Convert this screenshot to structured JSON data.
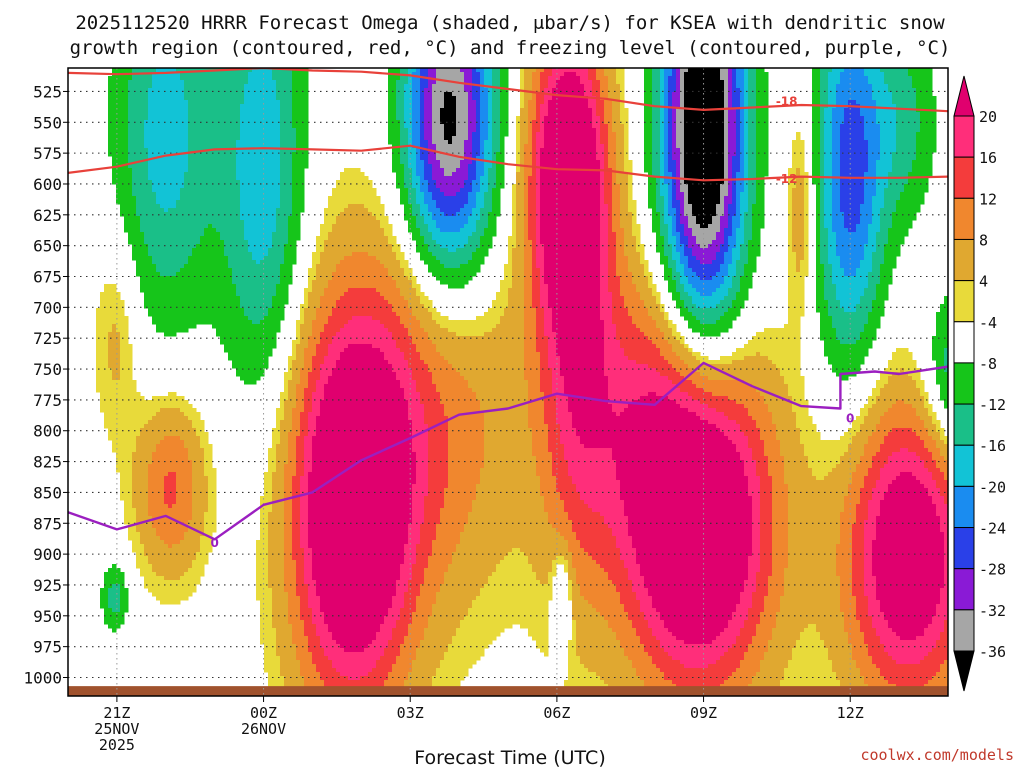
{
  "title": {
    "line1": "2025112520 HRRR Forecast Omega (shaded, μbar/s) for KSEA with dendritic snow",
    "line2": "growth region (contoured, red, °C) and freezing level (contoured, purple, °C)"
  },
  "credit": "coolwx.com/models",
  "colors": {
    "dgz": "#e8413a",
    "freezing": "#9b1fc0",
    "ground": "#a0522d",
    "grid": "#555555"
  },
  "chart_data": {
    "type": "heatmap",
    "title": "2025112520 HRRR Forecast Omega (shaded, μbar/s) for KSEA with dendritic snow growth region (contoured, red, °C) and freezing level (contoured, purple, °C)",
    "xlabel": "Forecast Time (UTC)",
    "ylabel": "",
    "x_range_hours": [
      -1,
      17
    ],
    "y_range_hpa": [
      1015,
      506
    ],
    "y_ticks": [
      525,
      550,
      575,
      600,
      625,
      650,
      675,
      700,
      725,
      750,
      775,
      800,
      825,
      850,
      875,
      900,
      925,
      950,
      975,
      1000
    ],
    "x_ticks": [
      {
        "hour": 0,
        "lines": [
          "21Z",
          "25NOV",
          "2025"
        ]
      },
      {
        "hour": 3,
        "lines": [
          "00Z",
          "26NOV"
        ]
      },
      {
        "hour": 6,
        "lines": [
          "03Z"
        ]
      },
      {
        "hour": 9,
        "lines": [
          "06Z"
        ]
      },
      {
        "hour": 12,
        "lines": [
          "09Z"
        ]
      },
      {
        "hour": 15,
        "lines": [
          "12Z"
        ]
      }
    ],
    "colorbar": {
      "labels": [
        "20",
        "16",
        "12",
        "8",
        "4",
        "-4",
        "-8",
        "-12",
        "-16",
        "-20",
        "-24",
        "-28",
        "-32",
        "-36"
      ],
      "bins": [
        {
          "range": ">20",
          "color": "#e0006e"
        },
        {
          "range": "16 to 20",
          "color": "#ff2e7a"
        },
        {
          "range": "12 to 16",
          "color": "#f43c3c"
        },
        {
          "range": "8 to 12",
          "color": "#f0872e"
        },
        {
          "range": "4 to 8",
          "color": "#e0a830"
        },
        {
          "range": "-4 to 4",
          "color": "#e8da3a"
        },
        {
          "range": "-8 to -4",
          "color": "#ffffff"
        },
        {
          "range": "-12 to -8",
          "color": "#16c51a"
        },
        {
          "range": "-16 to -12",
          "color": "#1abf88"
        },
        {
          "range": "-20 to -16",
          "color": "#12c3d6"
        },
        {
          "range": "-24 to -20",
          "color": "#1a8cf0"
        },
        {
          "range": "-28 to -24",
          "color": "#2a40e8"
        },
        {
          "range": "-32 to -28",
          "color": "#8a1ad6"
        },
        {
          "range": "-36 to -32",
          "color": "#a6a6a6"
        },
        {
          "range": "<-36",
          "color": "#000000"
        }
      ]
    },
    "omega_features": [
      {
        "name": "ascent-core-0430",
        "center": [
          4.8,
          870
        ],
        "sigma": [
          0.85,
          110
        ],
        "amp": 30
      },
      {
        "name": "ascent-core-0630-upper",
        "center": [
          9.2,
          590
        ],
        "sigma": [
          0.55,
          80
        ],
        "amp": 26
      },
      {
        "name": "ascent-core-0900",
        "center": [
          11.9,
          875
        ],
        "sigma": [
          1.05,
          95
        ],
        "amp": 34
      },
      {
        "name": "ascent-core-1330",
        "center": [
          16.2,
          900
        ],
        "sigma": [
          0.9,
          85
        ],
        "amp": 28
      },
      {
        "name": "ascent-band-0600-mid",
        "center": [
          9.4,
          720
        ],
        "sigma": [
          0.55,
          140
        ],
        "amp": 14
      },
      {
        "name": "ascent-broad-0300",
        "center": [
          6.2,
          790
        ],
        "sigma": [
          1.5,
          110
        ],
        "amp": 12
      },
      {
        "name": "ascent-2200",
        "center": [
          1.1,
          845
        ],
        "sigma": [
          0.5,
          50
        ],
        "amp": 13
      },
      {
        "name": "ascent-2100-upper",
        "center": [
          0.0,
          720
        ],
        "sigma": [
          0.35,
          60
        ],
        "amp": 6
      },
      {
        "name": "ascent-0730",
        "center": [
          10.6,
          780
        ],
        "sigma": [
          1.0,
          90
        ],
        "amp": 10
      },
      {
        "name": "ascent-1100",
        "center": [
          14.0,
          620
        ],
        "sigma": [
          0.2,
          60
        ],
        "amp": 8
      },
      {
        "name": "descent-2200",
        "center": [
          1.0,
          560
        ],
        "sigma": [
          0.75,
          110
        ],
        "amp": -14
      },
      {
        "name": "descent-0000",
        "center": [
          3.0,
          590
        ],
        "sigma": [
          0.6,
          130
        ],
        "amp": -15
      },
      {
        "name": "descent-0400",
        "center": [
          6.8,
          550
        ],
        "sigma": [
          0.65,
          90
        ],
        "amp": -34
      },
      {
        "name": "descent-0900",
        "center": [
          12.0,
          560
        ],
        "sigma": [
          0.6,
          120
        ],
        "amp": -42
      },
      {
        "name": "descent-1200",
        "center": [
          15.0,
          590
        ],
        "sigma": [
          0.5,
          110
        ],
        "amp": -22
      },
      {
        "name": "descent-1330",
        "center": [
          16.1,
          550
        ],
        "sigma": [
          0.5,
          60
        ],
        "amp": -9
      },
      {
        "name": "descent-1400-low",
        "center": [
          17.2,
          760
        ],
        "sigma": [
          0.5,
          50
        ],
        "amp": -14
      },
      {
        "name": "descent-2030-low",
        "center": [
          -0.05,
          935
        ],
        "sigma": [
          0.2,
          20
        ],
        "amp": -10
      },
      {
        "name": "descent-0600-low",
        "center": [
          9.1,
          935
        ],
        "sigma": [
          0.15,
          30
        ],
        "amp": -9
      }
    ],
    "series": [
      {
        "name": "dgz -18C",
        "label": "-18",
        "points": [
          [
            -1,
            510
          ],
          [
            0,
            511
          ],
          [
            1,
            510
          ],
          [
            2,
            508
          ],
          [
            3,
            506
          ],
          [
            4,
            508
          ],
          [
            5,
            509
          ],
          [
            6,
            512
          ],
          [
            7,
            518
          ],
          [
            8,
            523
          ],
          [
            9,
            528
          ],
          [
            10,
            531
          ],
          [
            11,
            537
          ],
          [
            12,
            540
          ],
          [
            13,
            538
          ],
          [
            14,
            536
          ],
          [
            15,
            537
          ],
          [
            16,
            539
          ],
          [
            17,
            541
          ]
        ]
      },
      {
        "name": "dgz -12C",
        "label": "-12",
        "points": [
          [
            -1,
            591
          ],
          [
            0,
            586
          ],
          [
            1,
            577
          ],
          [
            2,
            572
          ],
          [
            3,
            571
          ],
          [
            4,
            572
          ],
          [
            5,
            573
          ],
          [
            6,
            569
          ],
          [
            7,
            578
          ],
          [
            8,
            584
          ],
          [
            9,
            588
          ],
          [
            10,
            589
          ],
          [
            11,
            594
          ],
          [
            12,
            597
          ],
          [
            13,
            596
          ],
          [
            14,
            594
          ],
          [
            15,
            595
          ],
          [
            16,
            595
          ],
          [
            17,
            594
          ]
        ]
      },
      {
        "name": "freezing level 0C",
        "label": "0",
        "points": [
          [
            -1,
            866
          ],
          [
            0,
            880
          ],
          [
            1,
            869
          ],
          [
            2,
            888
          ],
          [
            3,
            860
          ],
          [
            4,
            850
          ],
          [
            5,
            824
          ],
          [
            6,
            806
          ],
          [
            7,
            787
          ],
          [
            8,
            782
          ],
          [
            9,
            770
          ],
          [
            10,
            776
          ],
          [
            11,
            779
          ],
          [
            12,
            745
          ],
          [
            13,
            764
          ],
          [
            14,
            780
          ],
          [
            14.8,
            782
          ],
          [
            14.8,
            754
          ],
          [
            15.5,
            752
          ],
          [
            16,
            754
          ],
          [
            17,
            748
          ]
        ]
      }
    ]
  }
}
